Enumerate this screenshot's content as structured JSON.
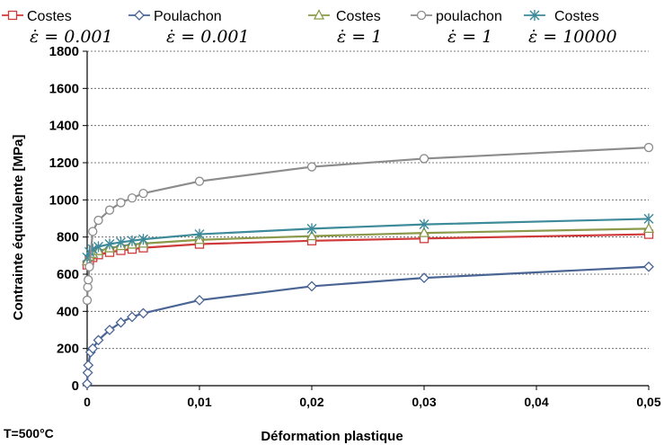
{
  "chart_data": {
    "type": "line",
    "xlabel": "Déformation plastique",
    "ylabel": "Contrainte équivalente [MPa]",
    "xlim": [
      0,
      0.05
    ],
    "ylim": [
      0,
      1800
    ],
    "x_ticks": [
      "0",
      "0,01",
      "0,02",
      "0,03",
      "0,04",
      "0,05"
    ],
    "y_ticks": [
      "0",
      "200",
      "400",
      "600",
      "800",
      "1000",
      "1200",
      "1400",
      "1600",
      "1800"
    ],
    "grid": "horizontal dashed",
    "legend_position": "top",
    "annotation": "T=500°C",
    "series": [
      {
        "name": "Costes",
        "rate_label": "ε̇ = 0.001",
        "color": "#d03a3a",
        "marker": "square",
        "x": [
          0,
          0.0002,
          0.0005,
          0.001,
          0.002,
          0.003,
          0.004,
          0.005,
          0.01,
          0.02,
          0.03,
          0.05
        ],
        "y": [
          650,
          675,
          690,
          705,
          718,
          728,
          735,
          742,
          762,
          780,
          792,
          815
        ]
      },
      {
        "name": "Poulachon",
        "rate_label": "ε̇ = 0.001",
        "color": "#4a6594",
        "marker": "diamond",
        "x": [
          0,
          5e-05,
          0.0001,
          0.0003,
          0.0005,
          0.001,
          0.002,
          0.003,
          0.004,
          0.005,
          0.01,
          0.02,
          0.03,
          0.05
        ],
        "y": [
          10,
          70,
          110,
          180,
          200,
          245,
          300,
          340,
          370,
          390,
          460,
          535,
          580,
          640
        ]
      },
      {
        "name": "Costes",
        "rate_label": "ε̇ = 1",
        "color": "#8a9a4a",
        "marker": "triangle",
        "x": [
          0,
          0.0002,
          0.0005,
          0.001,
          0.002,
          0.003,
          0.004,
          0.005,
          0.01,
          0.02,
          0.03,
          0.05
        ],
        "y": [
          670,
          695,
          710,
          725,
          740,
          752,
          760,
          765,
          785,
          805,
          822,
          845
        ]
      },
      {
        "name": "poulachon",
        "rate_label": "ε̇ = 1",
        "color": "#8c8c8c",
        "marker": "circle",
        "x": [
          0,
          5e-05,
          0.0001,
          0.0002,
          0.0005,
          0.001,
          0.002,
          0.003,
          0.004,
          0.005,
          0.01,
          0.02,
          0.03,
          0.05
        ],
        "y": [
          460,
          530,
          570,
          640,
          830,
          890,
          945,
          985,
          1010,
          1035,
          1100,
          1178,
          1222,
          1282
        ]
      },
      {
        "name": "Costes",
        "rate_label": "ε̇ = 10000",
        "color": "#3d8a9a",
        "marker": "asterisk",
        "x": [
          0,
          0.0002,
          0.0005,
          0.001,
          0.002,
          0.003,
          0.004,
          0.005,
          0.01,
          0.02,
          0.03,
          0.05
        ],
        "y": [
          690,
          720,
          735,
          748,
          762,
          772,
          780,
          788,
          815,
          845,
          868,
          898
        ]
      }
    ]
  }
}
